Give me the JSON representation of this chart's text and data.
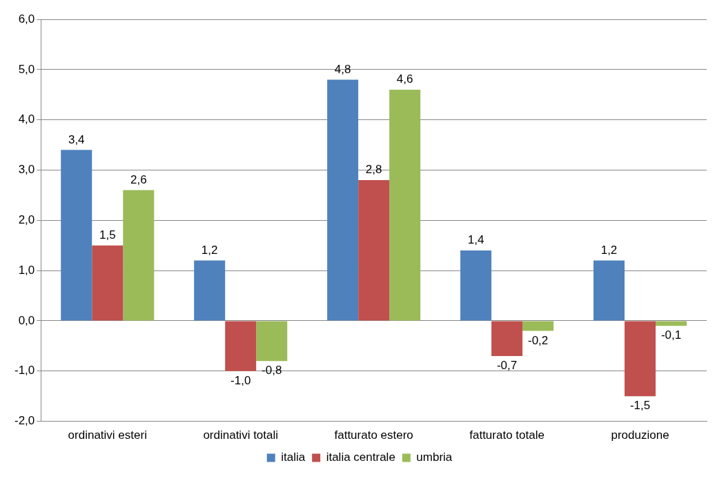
{
  "chart_data": {
    "type": "bar",
    "categories": [
      "ordinativi esteri",
      "ordinativi totali",
      "fatturato estero",
      "fatturato totale",
      "produzione"
    ],
    "series": [
      {
        "name": "italia",
        "color": "#4f81bd",
        "values": [
          3.4,
          1.2,
          4.8,
          1.4,
          1.2
        ],
        "value_labels": [
          "3,4",
          "1,2",
          "4,8",
          "1,4",
          "1,2"
        ]
      },
      {
        "name": "italia centrale",
        "color": "#c0504d",
        "values": [
          1.5,
          -1.0,
          2.8,
          -0.7,
          -1.5
        ],
        "value_labels": [
          "1,5",
          "-1,0",
          "2,8",
          "-0,7",
          "-1,5"
        ]
      },
      {
        "name": "umbria",
        "color": "#9bbb59",
        "values": [
          2.6,
          -0.8,
          4.6,
          -0.2,
          -0.1
        ],
        "value_labels": [
          "2,6",
          "-0,8",
          "4,6",
          "-0,2",
          "-0,1"
        ]
      }
    ],
    "ylim": [
      -2,
      6
    ],
    "yticks": [
      {
        "value": -2,
        "label": "-2,0"
      },
      {
        "value": -1,
        "label": "-1,0"
      },
      {
        "value": 0,
        "label": "0,0"
      },
      {
        "value": 1,
        "label": "1,0"
      },
      {
        "value": 2,
        "label": "2,0"
      },
      {
        "value": 3,
        "label": "3,0"
      },
      {
        "value": 4,
        "label": "4,0"
      },
      {
        "value": 5,
        "label": "5,0"
      },
      {
        "value": 6,
        "label": "6,0"
      }
    ],
    "grid": "y",
    "legend": "bottom"
  }
}
